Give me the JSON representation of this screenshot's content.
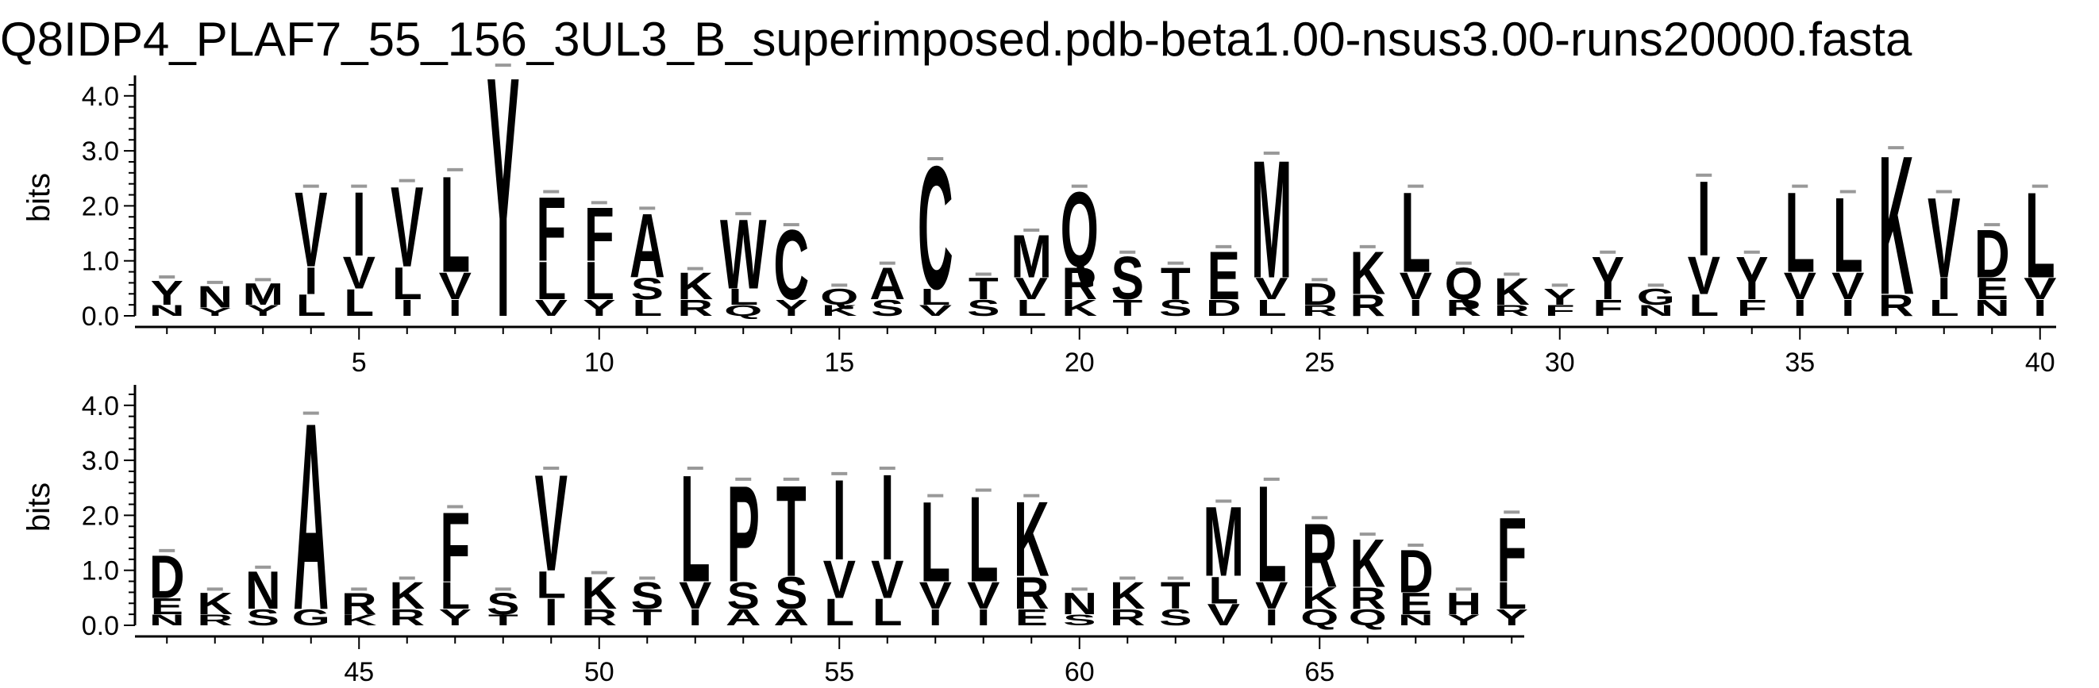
{
  "title": "Q8IDP4_PLAF7_55_156_3UL3_B_superimposed.pdb-beta1.00-nsus3.00-runs20000.fasta",
  "chart_data": {
    "type": "sequence-logo",
    "title": "Q8IDP4_PLAF7_55_156_3UL3_B_superimposed.pdb-beta1.00-nsus3.00-runs20000.fasta",
    "ylabel": "bits",
    "ylim": [
      0,
      4.3
    ],
    "y_ticks": [
      "0.0",
      "1.0",
      "2.0",
      "3.0",
      "4.0"
    ],
    "x_tick_labels": [
      "5",
      "10",
      "15",
      "20",
      "25",
      "30",
      "35",
      "40",
      "45",
      "50",
      "55",
      "60",
      "65"
    ],
    "panels": [
      {
        "name": "positions 1-40",
        "x_range": [
          1,
          40
        ]
      },
      {
        "name": "positions 41-69",
        "x_range": [
          41,
          69
        ]
      }
    ],
    "positions": [
      {
        "pos": 1,
        "letters": [
          [
            "Y",
            0.45
          ],
          [
            "N",
            0.2
          ]
        ]
      },
      {
        "pos": 2,
        "letters": [
          [
            "N",
            0.4
          ],
          [
            "Y",
            0.15
          ]
        ]
      },
      {
        "pos": 3,
        "letters": [
          [
            "M",
            0.4
          ],
          [
            "Y",
            0.2
          ]
        ]
      },
      {
        "pos": 4,
        "letters": [
          [
            "V",
            1.4
          ],
          [
            "I",
            0.5
          ],
          [
            "L",
            0.4
          ]
        ]
      },
      {
        "pos": 5,
        "letters": [
          [
            "I",
            1.2
          ],
          [
            "V",
            0.6
          ],
          [
            "L",
            0.5
          ]
        ]
      },
      {
        "pos": 6,
        "letters": [
          [
            "V",
            1.5
          ],
          [
            "L",
            0.6
          ],
          [
            "I",
            0.3
          ]
        ]
      },
      {
        "pos": 7,
        "letters": [
          [
            "L",
            1.8
          ],
          [
            "V",
            0.5
          ],
          [
            "I",
            0.3
          ]
        ]
      },
      {
        "pos": 8,
        "letters": [
          [
            "Y",
            4.5
          ]
        ]
      },
      {
        "pos": 9,
        "letters": [
          [
            "F",
            1.2
          ],
          [
            "L",
            0.7
          ],
          [
            "V",
            0.3
          ]
        ]
      },
      {
        "pos": 10,
        "letters": [
          [
            "F",
            1.0
          ],
          [
            "L",
            0.7
          ],
          [
            "Y",
            0.3
          ]
        ]
      },
      {
        "pos": 11,
        "letters": [
          [
            "A",
            1.2
          ],
          [
            "S",
            0.4
          ],
          [
            "L",
            0.3
          ]
        ]
      },
      {
        "pos": 12,
        "letters": [
          [
            "K",
            0.5
          ],
          [
            "R",
            0.3
          ]
        ]
      },
      {
        "pos": 13,
        "letters": [
          [
            "W",
            1.3
          ],
          [
            "L",
            0.3
          ],
          [
            "Q",
            0.2
          ]
        ]
      },
      {
        "pos": 14,
        "letters": [
          [
            "C",
            1.3
          ],
          [
            "Y",
            0.3
          ]
        ]
      },
      {
        "pos": 15,
        "letters": [
          [
            "Q",
            0.3
          ],
          [
            "K",
            0.2
          ]
        ]
      },
      {
        "pos": 16,
        "letters": [
          [
            "A",
            0.6
          ],
          [
            "S",
            0.3
          ]
        ]
      },
      {
        "pos": 17,
        "letters": [
          [
            "C",
            2.3
          ],
          [
            "L",
            0.3
          ],
          [
            "V",
            0.2
          ]
        ]
      },
      {
        "pos": 18,
        "letters": [
          [
            "T",
            0.4
          ],
          [
            "S",
            0.3
          ]
        ]
      },
      {
        "pos": 19,
        "letters": [
          [
            "M",
            0.8
          ],
          [
            "V",
            0.4
          ],
          [
            "L",
            0.3
          ]
        ]
      },
      {
        "pos": 20,
        "letters": [
          [
            "Q",
            1.4
          ],
          [
            "R",
            0.6
          ],
          [
            "K",
            0.3
          ]
        ]
      },
      {
        "pos": 21,
        "letters": [
          [
            "S",
            0.8
          ],
          [
            "T",
            0.3
          ]
        ]
      },
      {
        "pos": 22,
        "letters": [
          [
            "T",
            0.6
          ],
          [
            "S",
            0.3
          ]
        ]
      },
      {
        "pos": 23,
        "letters": [
          [
            "E",
            0.9
          ],
          [
            "D",
            0.3
          ]
        ]
      },
      {
        "pos": 24,
        "letters": [
          [
            "M",
            2.2
          ],
          [
            "V",
            0.4
          ],
          [
            "L",
            0.3
          ]
        ]
      },
      {
        "pos": 25,
        "letters": [
          [
            "D",
            0.4
          ],
          [
            "R",
            0.2
          ]
        ]
      },
      {
        "pos": 26,
        "letters": [
          [
            "K",
            0.8
          ],
          [
            "R",
            0.4
          ]
        ]
      },
      {
        "pos": 27,
        "letters": [
          [
            "L",
            1.5
          ],
          [
            "V",
            0.5
          ],
          [
            "I",
            0.3
          ]
        ]
      },
      {
        "pos": 28,
        "letters": [
          [
            "Q",
            0.6
          ],
          [
            "R",
            0.3
          ]
        ]
      },
      {
        "pos": 29,
        "letters": [
          [
            "K",
            0.5
          ],
          [
            "R",
            0.2
          ]
        ]
      },
      {
        "pos": 30,
        "letters": [
          [
            "Y",
            0.3
          ],
          [
            "F",
            0.2
          ]
        ]
      },
      {
        "pos": 31,
        "letters": [
          [
            "Y",
            0.8
          ],
          [
            "F",
            0.3
          ]
        ]
      },
      {
        "pos": 32,
        "letters": [
          [
            "G",
            0.3
          ],
          [
            "N",
            0.2
          ]
        ]
      },
      {
        "pos": 33,
        "letters": [
          [
            "I",
            1.4
          ],
          [
            "V",
            0.7
          ],
          [
            "L",
            0.4
          ]
        ]
      },
      {
        "pos": 34,
        "letters": [
          [
            "Y",
            0.8
          ],
          [
            "F",
            0.3
          ]
        ]
      },
      {
        "pos": 35,
        "letters": [
          [
            "L",
            1.5
          ],
          [
            "V",
            0.5
          ],
          [
            "I",
            0.3
          ]
        ]
      },
      {
        "pos": 36,
        "letters": [
          [
            "L",
            1.4
          ],
          [
            "V",
            0.5
          ],
          [
            "I",
            0.3
          ]
        ]
      },
      {
        "pos": 37,
        "letters": [
          [
            "K",
            2.6
          ],
          [
            "R",
            0.4
          ]
        ]
      },
      {
        "pos": 38,
        "letters": [
          [
            "V",
            1.5
          ],
          [
            "I",
            0.4
          ],
          [
            "L",
            0.3
          ]
        ]
      },
      {
        "pos": 39,
        "letters": [
          [
            "D",
            0.9
          ],
          [
            "E",
            0.4
          ],
          [
            "N",
            0.3
          ]
        ]
      },
      {
        "pos": 40,
        "letters": [
          [
            "L",
            1.6
          ],
          [
            "V",
            0.4
          ],
          [
            "I",
            0.3
          ]
        ]
      },
      {
        "pos": 41,
        "letters": [
          [
            "D",
            0.8
          ],
          [
            "E",
            0.3
          ],
          [
            "N",
            0.2
          ]
        ]
      },
      {
        "pos": 42,
        "letters": [
          [
            "K",
            0.4
          ],
          [
            "R",
            0.2
          ]
        ]
      },
      {
        "pos": 43,
        "letters": [
          [
            "N",
            0.7
          ],
          [
            "S",
            0.3
          ]
        ]
      },
      {
        "pos": 44,
        "letters": [
          [
            "A",
            3.5
          ],
          [
            "G",
            0.3
          ]
        ]
      },
      {
        "pos": 45,
        "letters": [
          [
            "R",
            0.4
          ],
          [
            "K",
            0.2
          ]
        ]
      },
      {
        "pos": 46,
        "letters": [
          [
            "K",
            0.5
          ],
          [
            "R",
            0.3
          ]
        ]
      },
      {
        "pos": 47,
        "letters": [
          [
            "F",
            1.3
          ],
          [
            "L",
            0.5
          ],
          [
            "Y",
            0.3
          ]
        ]
      },
      {
        "pos": 48,
        "letters": [
          [
            "S",
            0.4
          ],
          [
            "T",
            0.2
          ]
        ]
      },
      {
        "pos": 49,
        "letters": [
          [
            "V",
            1.8
          ],
          [
            "I",
            0.5
          ],
          [
            "L",
            0.5
          ]
        ]
      },
      {
        "pos": 50,
        "letters": [
          [
            "K",
            0.6
          ],
          [
            "R",
            0.3
          ]
        ]
      },
      {
        "pos": 51,
        "letters": [
          [
            "S",
            0.5
          ],
          [
            "T",
            0.3
          ]
        ]
      },
      {
        "pos": 52,
        "letters": [
          [
            "L",
            2.0
          ],
          [
            "V",
            0.5
          ],
          [
            "I",
            0.3
          ]
        ]
      },
      {
        "pos": 53,
        "letters": [
          [
            "P",
            1.8
          ],
          [
            "S",
            0.5
          ],
          [
            "A",
            0.3
          ]
        ]
      },
      {
        "pos": 54,
        "letters": [
          [
            "T",
            1.7
          ],
          [
            "S",
            0.6
          ],
          [
            "A",
            0.3
          ]
        ]
      },
      {
        "pos": 55,
        "letters": [
          [
            "I",
            1.5
          ],
          [
            "V",
            0.7
          ],
          [
            "L",
            0.5
          ]
        ]
      },
      {
        "pos": 56,
        "letters": [
          [
            "I",
            1.6
          ],
          [
            "V",
            0.7
          ],
          [
            "L",
            0.5
          ]
        ]
      },
      {
        "pos": 57,
        "letters": [
          [
            "L",
            1.5
          ],
          [
            "V",
            0.5
          ],
          [
            "I",
            0.3
          ]
        ]
      },
      {
        "pos": 58,
        "letters": [
          [
            "L",
            1.6
          ],
          [
            "V",
            0.5
          ],
          [
            "I",
            0.3
          ]
        ]
      },
      {
        "pos": 59,
        "letters": [
          [
            "K",
            1.4
          ],
          [
            "R",
            0.6
          ],
          [
            "E",
            0.3
          ]
        ]
      },
      {
        "pos": 60,
        "letters": [
          [
            "N",
            0.4
          ],
          [
            "S",
            0.2
          ]
        ]
      },
      {
        "pos": 61,
        "letters": [
          [
            "K",
            0.5
          ],
          [
            "R",
            0.3
          ]
        ]
      },
      {
        "pos": 62,
        "letters": [
          [
            "T",
            0.5
          ],
          [
            "S",
            0.3
          ]
        ]
      },
      {
        "pos": 63,
        "letters": [
          [
            "M",
            1.3
          ],
          [
            "L",
            0.5
          ],
          [
            "V",
            0.4
          ]
        ]
      },
      {
        "pos": 64,
        "letters": [
          [
            "L",
            1.8
          ],
          [
            "V",
            0.5
          ],
          [
            "I",
            0.3
          ]
        ]
      },
      {
        "pos": 65,
        "letters": [
          [
            "R",
            1.2
          ],
          [
            "K",
            0.4
          ],
          [
            "Q",
            0.3
          ]
        ]
      },
      {
        "pos": 66,
        "letters": [
          [
            "K",
            0.9
          ],
          [
            "R",
            0.4
          ],
          [
            "Q",
            0.3
          ]
        ]
      },
      {
        "pos": 67,
        "letters": [
          [
            "D",
            0.8
          ],
          [
            "E",
            0.4
          ],
          [
            "N",
            0.2
          ]
        ]
      },
      {
        "pos": 68,
        "letters": [
          [
            "H",
            0.4
          ],
          [
            "Y",
            0.2
          ]
        ]
      },
      {
        "pos": 69,
        "letters": [
          [
            "F",
            1.2
          ],
          [
            "L",
            0.5
          ],
          [
            "Y",
            0.3
          ]
        ]
      }
    ]
  }
}
